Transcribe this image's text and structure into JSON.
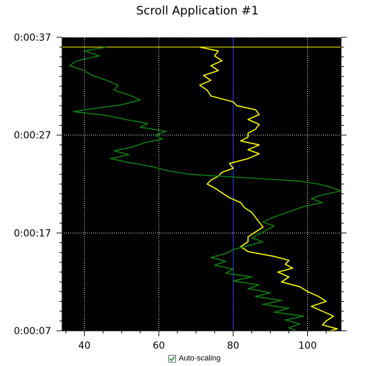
{
  "chart_data": {
    "type": "line",
    "title": "Scroll Application #1",
    "orientation": "vertical-scroll (time on y-axis, value on x-axis)",
    "xlim": [
      34,
      109
    ],
    "x_ticks": [
      40,
      60,
      80,
      100
    ],
    "y_ticks": [
      "0:00:37",
      "0:00:27",
      "0:00:17",
      "0:00:07"
    ],
    "ylim_seconds": [
      7,
      37
    ],
    "grid": true,
    "plot_background": "#000000",
    "reference_line": {
      "x": 80,
      "color": "#1a2fb4"
    },
    "cursor_line": {
      "time": 36,
      "color": "#ffff00"
    },
    "series": [
      {
        "color": "#ffff00",
        "points": [
          [
            36,
            71
          ],
          [
            35.6,
            76
          ],
          [
            35.1,
            75
          ],
          [
            34.6,
            77
          ],
          [
            34.1,
            74
          ],
          [
            33.6,
            76
          ],
          [
            33.1,
            72
          ],
          [
            32.6,
            74
          ],
          [
            32.1,
            71
          ],
          [
            31.6,
            73
          ],
          [
            31,
            74
          ],
          [
            30.4,
            80
          ],
          [
            30,
            81
          ],
          [
            29.6,
            86
          ],
          [
            29.1,
            87
          ],
          [
            28.6,
            84
          ],
          [
            28.1,
            87
          ],
          [
            27.6,
            86
          ],
          [
            27.2,
            84
          ],
          [
            26.8,
            84
          ],
          [
            26.4,
            82
          ],
          [
            26,
            87
          ],
          [
            25.5,
            84
          ],
          [
            25.1,
            87
          ],
          [
            24.6,
            84
          ],
          [
            24.1,
            79
          ],
          [
            23.6,
            80
          ],
          [
            23.2,
            77
          ],
          [
            22.8,
            76
          ],
          [
            22.4,
            74
          ],
          [
            22,
            73
          ],
          [
            21.6,
            75
          ],
          [
            21.1,
            77
          ],
          [
            20.6,
            79
          ],
          [
            20.1,
            82
          ],
          [
            19.6,
            83
          ],
          [
            19.1,
            85
          ],
          [
            18.6,
            86
          ],
          [
            18.1,
            87
          ],
          [
            17.6,
            88
          ],
          [
            17.1,
            86
          ],
          [
            16.6,
            84
          ],
          [
            16.1,
            84
          ],
          [
            15.6,
            82
          ],
          [
            15.1,
            84
          ],
          [
            14.6,
            91
          ],
          [
            14.2,
            95
          ],
          [
            13.8,
            94
          ],
          [
            13.4,
            96
          ],
          [
            13,
            92
          ],
          [
            12.5,
            95
          ],
          [
            12,
            93
          ],
          [
            11.5,
            98
          ],
          [
            11,
            100
          ],
          [
            10.5,
            103
          ],
          [
            10,
            105
          ],
          [
            9.5,
            101
          ],
          [
            9,
            104
          ],
          [
            8.5,
            107
          ],
          [
            8,
            105
          ],
          [
            7.6,
            104
          ],
          [
            7.2,
            108
          ],
          [
            7,
            106
          ]
        ]
      },
      {
        "color": "#0e7c0e",
        "points": [
          [
            36,
            46
          ],
          [
            35.6,
            40
          ],
          [
            35.1,
            44
          ],
          [
            34.6,
            38
          ],
          [
            34.1,
            36
          ],
          [
            33.6,
            40
          ],
          [
            33.1,
            42
          ],
          [
            32.6,
            46
          ],
          [
            32.1,
            49
          ],
          [
            31.6,
            48
          ],
          [
            31.1,
            52
          ],
          [
            30.6,
            55
          ],
          [
            30.1,
            50
          ],
          [
            29.8,
            44
          ],
          [
            29.4,
            37
          ],
          [
            29,
            46
          ],
          [
            28.6,
            51
          ],
          [
            28.2,
            57
          ],
          [
            27.8,
            55
          ],
          [
            27.4,
            62
          ],
          [
            27,
            59
          ],
          [
            26.6,
            61
          ],
          [
            26.2,
            56
          ],
          [
            25.8,
            53
          ],
          [
            25.4,
            48
          ],
          [
            25,
            52
          ],
          [
            24.6,
            47
          ],
          [
            24.2,
            52
          ],
          [
            23.8,
            58
          ],
          [
            23.4,
            62
          ],
          [
            23,
            68
          ],
          [
            22.6,
            85
          ],
          [
            22.3,
            98
          ],
          [
            22,
            103
          ],
          [
            21.7,
            106
          ],
          [
            21.3,
            109
          ],
          [
            20.9,
            104
          ],
          [
            20.5,
            101
          ],
          [
            20.1,
            104
          ],
          [
            19.7,
            99
          ],
          [
            19.3,
            96
          ],
          [
            18.9,
            93
          ],
          [
            18.5,
            90
          ],
          [
            18.1,
            88
          ],
          [
            17.7,
            91
          ],
          [
            17.3,
            89
          ],
          [
            16.9,
            87
          ],
          [
            16.5,
            85
          ],
          [
            16.1,
            88
          ],
          [
            15.7,
            84
          ],
          [
            15.3,
            80
          ],
          [
            14.9,
            78
          ],
          [
            14.5,
            74
          ],
          [
            14.1,
            78
          ],
          [
            13.7,
            75
          ],
          [
            13.3,
            80
          ],
          [
            12.9,
            78
          ],
          [
            12.5,
            85
          ],
          [
            12.1,
            80
          ],
          [
            11.7,
            87
          ],
          [
            11.3,
            84
          ],
          [
            10.9,
            90
          ],
          [
            10.5,
            86
          ],
          [
            10.1,
            93
          ],
          [
            9.7,
            88
          ],
          [
            9.3,
            95
          ],
          [
            8.9,
            91
          ],
          [
            8.5,
            99
          ],
          [
            8.1,
            94
          ],
          [
            7.7,
            98
          ],
          [
            7.3,
            95
          ],
          [
            7,
            97
          ]
        ]
      }
    ]
  },
  "auto_scaling": {
    "label": "Auto-scaling",
    "checked": true
  }
}
